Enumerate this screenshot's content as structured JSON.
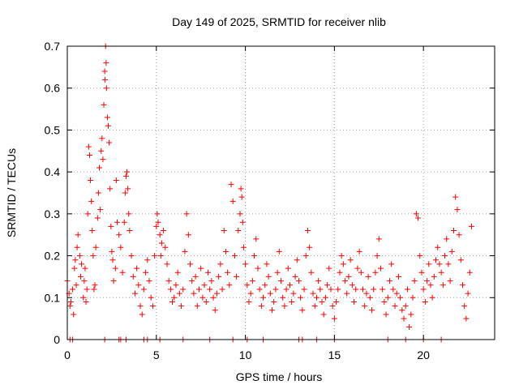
{
  "chart_data": {
    "type": "scatter",
    "title": "Day 149 of 2025, SRMTID for receiver nlib",
    "xlabel": "GPS time / hours",
    "ylabel": "SRMTID / TECUs",
    "xlim": [
      0,
      24
    ],
    "ylim": [
      0,
      0.7
    ],
    "x_ticks": [
      0,
      5,
      10,
      15,
      20
    ],
    "y_ticks": [
      0,
      0.1,
      0.2,
      0.3,
      0.4,
      0.5,
      0.6,
      0.7
    ],
    "grid": true,
    "marker": "+",
    "marker_color": "#ff0000",
    "series": [
      {
        "name": "SRMTID",
        "points": [
          [
            0.0,
            0.14
          ],
          [
            0.1,
            0.11
          ],
          [
            0.15,
            0.08
          ],
          [
            0.2,
            0.09
          ],
          [
            0.3,
            0.12
          ],
          [
            0.35,
            0.06
          ],
          [
            0.4,
            0.17
          ],
          [
            0.45,
            0.19
          ],
          [
            0.5,
            0.13
          ],
          [
            0.55,
            0.22
          ],
          [
            0.6,
            0.25
          ],
          [
            0.7,
            0.2
          ],
          [
            0.75,
            0.15
          ],
          [
            0.8,
            0.18
          ],
          [
            0.9,
            0.1
          ],
          [
            0.95,
            0.14
          ],
          [
            1.0,
            0.17
          ],
          [
            1.05,
            0.09
          ],
          [
            1.1,
            0.12
          ],
          [
            1.15,
            0.3
          ],
          [
            1.2,
            0.46
          ],
          [
            1.25,
            0.44
          ],
          [
            1.3,
            0.38
          ],
          [
            1.35,
            0.33
          ],
          [
            1.4,
            0.26
          ],
          [
            1.45,
            0.2
          ],
          [
            1.5,
            0.12
          ],
          [
            1.55,
            0.13
          ],
          [
            1.6,
            0.22
          ],
          [
            1.7,
            0.29
          ],
          [
            1.75,
            0.35
          ],
          [
            1.8,
            0.41
          ],
          [
            1.85,
            0.31
          ],
          [
            1.9,
            0.45
          ],
          [
            1.95,
            0.48
          ],
          [
            2.0,
            0.43
          ],
          [
            2.05,
            0.56
          ],
          [
            2.1,
            0.64
          ],
          [
            2.12,
            0.62
          ],
          [
            2.15,
            0.7
          ],
          [
            2.18,
            0.66
          ],
          [
            2.2,
            0.6
          ],
          [
            2.25,
            0.53
          ],
          [
            2.3,
            0.51
          ],
          [
            2.35,
            0.47
          ],
          [
            2.4,
            0.36
          ],
          [
            2.45,
            0.27
          ],
          [
            2.5,
            0.21
          ],
          [
            2.55,
            0.19
          ],
          [
            2.6,
            0.14
          ],
          [
            2.7,
            0.17
          ],
          [
            2.75,
            0.38
          ],
          [
            2.8,
            0.28
          ],
          [
            2.9,
            0.25
          ],
          [
            3.0,
            0.22
          ],
          [
            3.1,
            0.16
          ],
          [
            3.2,
            0.28
          ],
          [
            3.25,
            0.35
          ],
          [
            3.3,
            0.39
          ],
          [
            3.35,
            0.4
          ],
          [
            3.4,
            0.36
          ],
          [
            3.45,
            0.3
          ],
          [
            3.5,
            0.26
          ],
          [
            3.6,
            0.2
          ],
          [
            3.7,
            0.15
          ],
          [
            3.8,
            0.11
          ],
          [
            3.9,
            0.17
          ],
          [
            4.0,
            0.13
          ],
          [
            4.1,
            0.08
          ],
          [
            4.2,
            0.06
          ],
          [
            4.3,
            0.12
          ],
          [
            4.4,
            0.16
          ],
          [
            4.5,
            0.19
          ],
          [
            4.6,
            0.14
          ],
          [
            4.7,
            0.1
          ],
          [
            4.8,
            0.08
          ],
          [
            4.9,
            0.2
          ],
          [
            5.0,
            0.27
          ],
          [
            5.05,
            0.3
          ],
          [
            5.1,
            0.28
          ],
          [
            5.2,
            0.25
          ],
          [
            5.25,
            0.2
          ],
          [
            5.3,
            0.23
          ],
          [
            5.4,
            0.26
          ],
          [
            5.5,
            0.22
          ],
          [
            5.6,
            0.18
          ],
          [
            5.7,
            0.14
          ],
          [
            5.8,
            0.12
          ],
          [
            5.9,
            0.09
          ],
          [
            6.0,
            0.1
          ],
          [
            6.1,
            0.13
          ],
          [
            6.2,
            0.16
          ],
          [
            6.3,
            0.11
          ],
          [
            6.4,
            0.08
          ],
          [
            6.5,
            0.12
          ],
          [
            6.6,
            0.21
          ],
          [
            6.7,
            0.3
          ],
          [
            6.8,
            0.25
          ],
          [
            6.9,
            0.18
          ],
          [
            7.0,
            0.14
          ],
          [
            7.1,
            0.11
          ],
          [
            7.2,
            0.15
          ],
          [
            7.3,
            0.08
          ],
          [
            7.4,
            0.12
          ],
          [
            7.5,
            0.17
          ],
          [
            7.6,
            0.1
          ],
          [
            7.7,
            0.13
          ],
          [
            7.8,
            0.09
          ],
          [
            7.9,
            0.16
          ],
          [
            8.0,
            0.12
          ],
          [
            8.1,
            0.14
          ],
          [
            8.2,
            0.1
          ],
          [
            8.3,
            0.07
          ],
          [
            8.4,
            0.11
          ],
          [
            8.5,
            0.15
          ],
          [
            8.6,
            0.18
          ],
          [
            8.7,
            0.12
          ],
          [
            8.8,
            0.26
          ],
          [
            8.9,
            0.21
          ],
          [
            9.0,
            0.16
          ],
          [
            9.1,
            0.13
          ],
          [
            9.2,
            0.37
          ],
          [
            9.3,
            0.33
          ],
          [
            9.4,
            0.2
          ],
          [
            9.5,
            0.15
          ],
          [
            9.6,
            0.26
          ],
          [
            9.7,
            0.3
          ],
          [
            9.75,
            0.36
          ],
          [
            9.8,
            0.34
          ],
          [
            9.85,
            0.28
          ],
          [
            9.9,
            0.22
          ],
          [
            10.0,
            0.18
          ],
          [
            10.1,
            0.13
          ],
          [
            10.2,
            0.09
          ],
          [
            10.3,
            0.11
          ],
          [
            10.4,
            0.14
          ],
          [
            10.5,
            0.2
          ],
          [
            10.6,
            0.24
          ],
          [
            10.7,
            0.17
          ],
          [
            10.8,
            0.12
          ],
          [
            10.9,
            0.08
          ],
          [
            11.0,
            0.1
          ],
          [
            11.1,
            0.13
          ],
          [
            11.2,
            0.18
          ],
          [
            11.3,
            0.15
          ],
          [
            11.4,
            0.11
          ],
          [
            11.5,
            0.07
          ],
          [
            11.6,
            0.09
          ],
          [
            11.7,
            0.12
          ],
          [
            11.8,
            0.16
          ],
          [
            11.9,
            0.21
          ],
          [
            12.0,
            0.14
          ],
          [
            12.1,
            0.1
          ],
          [
            12.2,
            0.08
          ],
          [
            12.3,
            0.12
          ],
          [
            12.4,
            0.17
          ],
          [
            12.5,
            0.13
          ],
          [
            12.6,
            0.09
          ],
          [
            12.7,
            0.11
          ],
          [
            12.8,
            0.15
          ],
          [
            12.9,
            0.19
          ],
          [
            13.0,
            0.14
          ],
          [
            13.1,
            0.1
          ],
          [
            13.2,
            0.07
          ],
          [
            13.3,
            0.12
          ],
          [
            13.4,
            0.2
          ],
          [
            13.5,
            0.26
          ],
          [
            13.6,
            0.22
          ],
          [
            13.7,
            0.16
          ],
          [
            13.8,
            0.11
          ],
          [
            13.9,
            0.08
          ],
          [
            14.0,
            0.1
          ],
          [
            14.1,
            0.14
          ],
          [
            14.2,
            0.12
          ],
          [
            14.3,
            0.09
          ],
          [
            14.4,
            0.06
          ],
          [
            14.5,
            0.1
          ],
          [
            14.6,
            0.13
          ],
          [
            14.7,
            0.17
          ],
          [
            14.8,
            0.12
          ],
          [
            14.9,
            0.08
          ],
          [
            15.0,
            0.05
          ],
          [
            15.1,
            0.09
          ],
          [
            15.2,
            0.12
          ],
          [
            15.3,
            0.16
          ],
          [
            15.4,
            0.2
          ],
          [
            15.5,
            0.18
          ],
          [
            15.6,
            0.14
          ],
          [
            15.7,
            0.11
          ],
          [
            15.8,
            0.15
          ],
          [
            15.9,
            0.19
          ],
          [
            16.0,
            0.13
          ],
          [
            16.1,
            0.09
          ],
          [
            16.2,
            0.12
          ],
          [
            16.3,
            0.17
          ],
          [
            16.4,
            0.21
          ],
          [
            16.5,
            0.16
          ],
          [
            16.6,
            0.12
          ],
          [
            16.7,
            0.08
          ],
          [
            16.8,
            0.11
          ],
          [
            16.9,
            0.15
          ],
          [
            17.0,
            0.1
          ],
          [
            17.1,
            0.07
          ],
          [
            17.2,
            0.12
          ],
          [
            17.3,
            0.16
          ],
          [
            17.4,
            0.2
          ],
          [
            17.5,
            0.24
          ],
          [
            17.6,
            0.17
          ],
          [
            17.7,
            0.12
          ],
          [
            17.8,
            0.09
          ],
          [
            17.9,
            0.06
          ],
          [
            18.0,
            0.1
          ],
          [
            18.1,
            0.14
          ],
          [
            18.2,
            0.18
          ],
          [
            18.3,
            0.12
          ],
          [
            18.4,
            0.08
          ],
          [
            18.5,
            0.11
          ],
          [
            18.6,
            0.15
          ],
          [
            18.7,
            0.1
          ],
          [
            18.8,
            0.07
          ],
          [
            18.9,
            0.05
          ],
          [
            19.0,
            0.08
          ],
          [
            19.1,
            0.12
          ],
          [
            19.2,
            0.03
          ],
          [
            19.3,
            0.06
          ],
          [
            19.4,
            0.1
          ],
          [
            19.5,
            0.14
          ],
          [
            19.6,
            0.3
          ],
          [
            19.7,
            0.29
          ],
          [
            19.8,
            0.2
          ],
          [
            19.9,
            0.16
          ],
          [
            20.0,
            0.12
          ],
          [
            20.1,
            0.09
          ],
          [
            20.2,
            0.14
          ],
          [
            20.3,
            0.18
          ],
          [
            20.4,
            0.13
          ],
          [
            20.5,
            0.1
          ],
          [
            20.6,
            0.15
          ],
          [
            20.7,
            0.19
          ],
          [
            20.8,
            0.22
          ],
          [
            20.9,
            0.18
          ],
          [
            21.0,
            0.16
          ],
          [
            21.1,
            0.13
          ],
          [
            21.2,
            0.2
          ],
          [
            21.3,
            0.24
          ],
          [
            21.4,
            0.18
          ],
          [
            21.5,
            0.14
          ],
          [
            21.6,
            0.21
          ],
          [
            21.7,
            0.26
          ],
          [
            21.8,
            0.34
          ],
          [
            21.9,
            0.31
          ],
          [
            22.0,
            0.25
          ],
          [
            22.1,
            0.19
          ],
          [
            22.2,
            0.13
          ],
          [
            22.3,
            0.08
          ],
          [
            22.4,
            0.05
          ],
          [
            22.5,
            0.11
          ],
          [
            22.6,
            0.16
          ],
          [
            22.7,
            0.27
          ]
        ],
        "zero_points": [
          0.15,
          0.3,
          2.1,
          2.9,
          3.0,
          3.3,
          4.3,
          4.5,
          5.2,
          6.5,
          8.0,
          9.3,
          10.1,
          11.0,
          13.0,
          13.2,
          14.0,
          15.0,
          18.0,
          19.0,
          20.0,
          21.0
        ]
      }
    ]
  }
}
